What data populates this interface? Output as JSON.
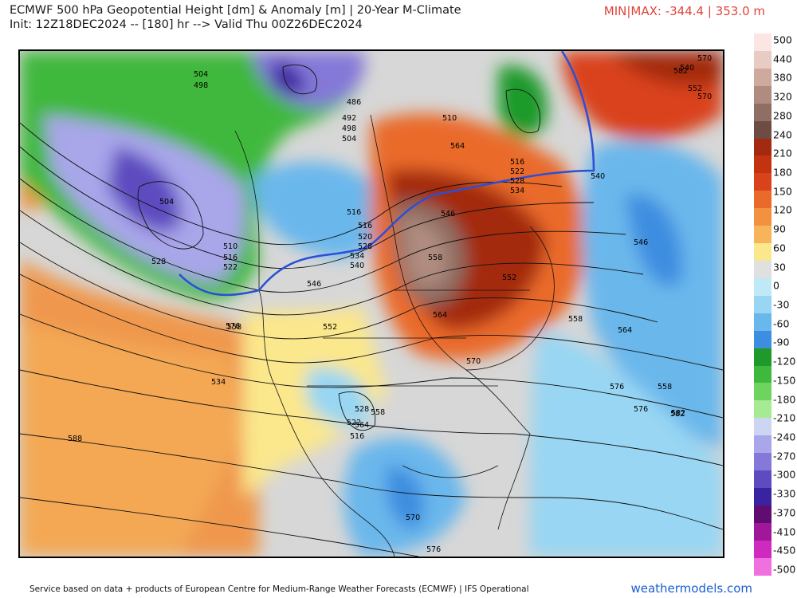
{
  "header": {
    "title": "ECMWF 500 hPa Geopotential Height [dm] & Anomaly [m] | 20-Year M-Climate",
    "init": "Init: 12Z18DEC2024 -- [180] hr --> Valid Thu 00Z26DEC2024",
    "minmax": "MIN|MAX: -344.4 | 353.0 m"
  },
  "footer": {
    "credit": "Service based on data + products of European Centre for Medium-Range Weather Forecasts (ECMWF) | IFS Operational",
    "brand": "weathermodels.com"
  },
  "colorbar": {
    "labels": [
      "500",
      "440",
      "380",
      "320",
      "280",
      "240",
      "210",
      "180",
      "150",
      "120",
      "90",
      "60",
      "30",
      "0",
      "-30",
      "-60",
      "-90",
      "-120",
      "-150",
      "-180",
      "-210",
      "-240",
      "-270",
      "-300",
      "-330",
      "-370",
      "-410",
      "-450",
      "-500"
    ],
    "colors": [
      "#fbe6e3",
      "#e8cbc3",
      "#cdaa9d",
      "#b08c80",
      "#8f6e63",
      "#6d4c44",
      "#a32a10",
      "#c4330f",
      "#d9431b",
      "#ea6a2a",
      "#f2913f",
      "#f7b45a",
      "#fbe78c",
      "#e0e0e0",
      "#bfe9f7",
      "#98d6f3",
      "#6ab7ec",
      "#3d8de0",
      "#1e9a2a",
      "#3fb83e",
      "#6fd35f",
      "#a6ea93",
      "#ccd6f2",
      "#a9a6ea",
      "#8478d8",
      "#5d4bbf",
      "#3a23a0",
      "#610c70",
      "#a0179a",
      "#cf2ac0",
      "#f070e0"
    ]
  },
  "contour_labels": [
    "504",
    "498",
    "486",
    "492",
    "498",
    "504",
    "510",
    "516",
    "522",
    "528",
    "534",
    "540",
    "546",
    "552",
    "558",
    "564",
    "570",
    "576",
    "582",
    "588",
    "516",
    "504",
    "510",
    "516",
    "522",
    "528",
    "516",
    "520",
    "528",
    "534",
    "540",
    "546",
    "558",
    "564",
    "552",
    "558",
    "552",
    "546",
    "540",
    "534",
    "528",
    "522",
    "516",
    "558",
    "564",
    "570",
    "576",
    "582",
    "570",
    "576",
    "558",
    "564",
    "570",
    "576",
    "582"
  ]
}
